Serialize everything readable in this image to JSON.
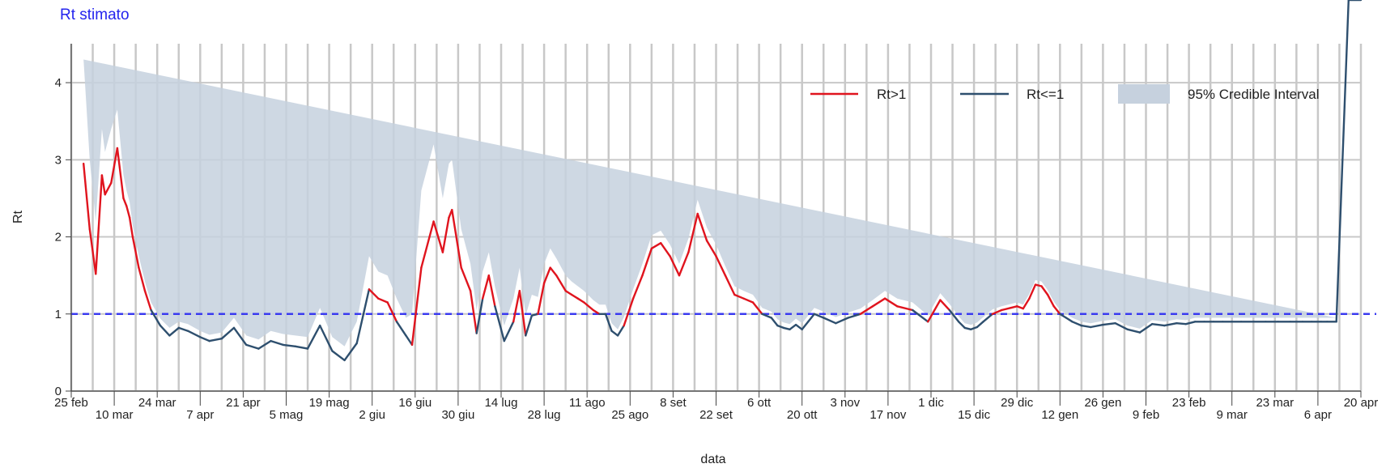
{
  "chart_data": {
    "type": "line",
    "title": "Rt stimato",
    "xlabel": "data",
    "ylabel": "Rt",
    "ylim": [
      0,
      4.4
    ],
    "yticks": [
      0,
      1,
      2,
      3,
      4
    ],
    "x_start": "2020-02-25",
    "x_end": "2021-04-20",
    "xtick_labels": [
      "25 feb",
      "10 mar",
      "24 mar",
      "7 apr",
      "21 apr",
      "5 mag",
      "19 mag",
      "2 giu",
      "16 giu",
      "30 giu",
      "14 lug",
      "28 lug",
      "11 ago",
      "25 ago",
      "8 set",
      "22 set",
      "6 ott",
      "20 ott",
      "3 nov",
      "17 nov",
      "1 dic",
      "15 dic",
      "29 dic",
      "12 gen",
      "26 gen",
      "9 feb",
      "23 feb",
      "9 mar",
      "23 mar",
      "6 apr",
      "20 apr"
    ],
    "reference_line": 1,
    "grid": true,
    "legend_position": "top-right",
    "legend": [
      "Rt>1",
      "Rt<=1",
      "95% Credible Interval"
    ],
    "colors": {
      "above": "#e0141e",
      "below": "#2e4f6e",
      "ci": "#c6d1de",
      "ref": "#3a3af0",
      "title": "#2424ee"
    },
    "series": [
      {
        "dates": [
          "2020-02-29",
          "2020-03-02",
          "2020-03-04",
          "2020-03-06",
          "2020-03-07",
          "2020-03-09",
          "2020-03-11",
          "2020-03-13",
          "2020-03-14",
          "2020-03-15",
          "2020-03-16",
          "2020-03-18",
          "2020-03-20",
          "2020-03-22",
          "2020-03-25",
          "2020-03-28",
          "2020-03-31",
          "2020-04-03",
          "2020-04-07",
          "2020-04-10",
          "2020-04-14",
          "2020-04-18",
          "2020-04-22",
          "2020-04-26",
          "2020-04-30",
          "2020-05-04",
          "2020-05-08",
          "2020-05-12",
          "2020-05-16",
          "2020-05-20",
          "2020-05-24",
          "2020-05-28",
          "2020-06-01",
          "2020-06-04",
          "2020-06-07",
          "2020-06-10",
          "2020-06-13",
          "2020-06-15",
          "2020-06-18",
          "2020-06-22",
          "2020-06-25",
          "2020-06-27",
          "2020-06-28",
          "2020-07-01",
          "2020-07-04",
          "2020-07-06",
          "2020-07-08",
          "2020-07-10",
          "2020-07-12",
          "2020-07-15",
          "2020-07-18",
          "2020-07-20",
          "2020-07-22",
          "2020-07-24",
          "2020-07-26",
          "2020-07-28",
          "2020-07-30",
          "2020-08-01",
          "2020-08-04",
          "2020-08-06",
          "2020-08-08",
          "2020-08-10",
          "2020-08-13",
          "2020-08-15",
          "2020-08-17",
          "2020-08-19",
          "2020-08-21",
          "2020-08-23",
          "2020-08-26",
          "2020-08-29",
          "2020-09-01",
          "2020-09-04",
          "2020-09-07",
          "2020-09-10",
          "2020-09-13",
          "2020-09-16",
          "2020-09-19",
          "2020-09-22",
          "2020-09-25",
          "2020-09-28",
          "2020-10-01",
          "2020-10-04",
          "2020-10-07",
          "2020-10-10",
          "2020-10-12",
          "2020-10-14",
          "2020-10-16",
          "2020-10-18",
          "2020-10-20",
          "2020-10-22",
          "2020-10-24",
          "2020-10-27",
          "2020-10-31",
          "2020-11-04",
          "2020-11-08",
          "2020-11-12",
          "2020-11-16",
          "2020-11-20",
          "2020-11-25",
          "2020-11-30",
          "2020-12-04",
          "2020-12-07",
          "2020-12-10",
          "2020-12-12",
          "2020-12-14",
          "2020-12-16",
          "2020-12-18",
          "2020-12-21",
          "2020-12-24",
          "2020-12-27",
          "2020-12-29",
          "2020-12-31",
          "2021-01-02",
          "2021-01-04",
          "2021-01-06",
          "2021-01-08",
          "2021-01-10",
          "2021-01-12",
          "2021-01-14",
          "2021-01-16",
          "2021-01-19",
          "2021-01-22",
          "2021-01-26",
          "2021-01-30",
          "2021-02-03",
          "2021-02-07",
          "2021-02-11",
          "2021-02-15",
          "2021-02-19",
          "2021-02-22",
          "2021-02-25",
          "2021-02-28",
          "2021-03-03",
          "2021-03-06",
          "2021-03-09",
          "2021-03-12",
          "2021-03-16",
          "2021-03-20",
          "2021-03-24",
          "2021-03-28",
          "2021-04-01",
          "2021-04-04",
          "2021-04-07",
          "2021-04-09",
          "2021-04-12",
          "2021-04-16",
          "2021-04-20"
        ],
        "rt": [
          2.95,
          2.1,
          1.52,
          2.8,
          2.55,
          2.7,
          3.15,
          2.5,
          2.4,
          2.25,
          2.0,
          1.6,
          1.3,
          1.05,
          0.85,
          0.72,
          0.82,
          0.78,
          0.7,
          0.65,
          0.68,
          0.82,
          0.6,
          0.55,
          0.65,
          0.6,
          0.58,
          0.55,
          0.85,
          0.52,
          0.4,
          0.62,
          1.32,
          1.2,
          1.15,
          0.9,
          0.72,
          0.6,
          1.6,
          2.2,
          1.8,
          2.25,
          2.35,
          1.6,
          1.3,
          0.75,
          1.2,
          1.5,
          1.1,
          0.65,
          0.9,
          1.3,
          0.72,
          0.98,
          1.0,
          1.4,
          1.6,
          1.5,
          1.3,
          1.25,
          1.2,
          1.15,
          1.05,
          1.0,
          1.0,
          0.78,
          0.72,
          0.85,
          1.2,
          1.5,
          1.85,
          1.92,
          1.75,
          1.5,
          1.8,
          2.3,
          1.95,
          1.75,
          1.5,
          1.25,
          1.2,
          1.15,
          1.0,
          0.95,
          0.85,
          0.82,
          0.8,
          0.86,
          0.8,
          0.9,
          1.0,
          0.95,
          0.88,
          0.95,
          1.0,
          1.1,
          1.2,
          1.1,
          1.05,
          0.9,
          1.18,
          1.05,
          0.9,
          0.82,
          0.8,
          0.83,
          0.9,
          1.0,
          1.05,
          1.08,
          1.1,
          1.07,
          1.2,
          1.38,
          1.36,
          1.25,
          1.1,
          1.0,
          0.95,
          0.9,
          0.85,
          0.83,
          0.86,
          0.88,
          0.8,
          0.76,
          0.87,
          0.85,
          0.88,
          0.87,
          0.9,
          0.9,
          0.9,
          0.9,
          0.9,
          0.9,
          0.9,
          0.9,
          0.9,
          0.9,
          0.9,
          0.9,
          0.9,
          0.9,
          0.9
        ],
        "ci_low": [
          2.2,
          1.6,
          1.2,
          2.2,
          2.1,
          2.3,
          2.7,
          2.3,
          2.2,
          2.1,
          1.9,
          1.5,
          1.2,
          0.98,
          0.78,
          0.64,
          0.73,
          0.7,
          0.62,
          0.58,
          0.6,
          0.7,
          0.48,
          0.44,
          0.52,
          0.47,
          0.44,
          0.4,
          0.6,
          0.36,
          0.25,
          0.35,
          0.95,
          0.9,
          0.82,
          0.6,
          0.5,
          0.2,
          1.0,
          1.6,
          1.35,
          1.7,
          1.8,
          1.2,
          1.0,
          0.5,
          0.9,
          1.2,
          0.85,
          0.45,
          0.6,
          1.0,
          0.48,
          0.7,
          0.8,
          1.15,
          1.35,
          1.3,
          1.12,
          1.1,
          1.05,
          1.0,
          0.92,
          0.88,
          0.88,
          0.68,
          0.64,
          0.76,
          1.08,
          1.35,
          1.68,
          1.78,
          1.6,
          1.35,
          1.62,
          2.1,
          1.78,
          1.6,
          1.38,
          1.15,
          1.1,
          1.05,
          0.92,
          0.87,
          0.78,
          0.76,
          0.74,
          0.78,
          0.72,
          0.82,
          0.92,
          0.87,
          0.8,
          0.88,
          0.93,
          1.02,
          1.1,
          1.0,
          0.95,
          0.82,
          1.1,
          0.97,
          0.84,
          0.76,
          0.74,
          0.77,
          0.84,
          0.94,
          1.0,
          1.03,
          1.05,
          1.02,
          1.14,
          1.32,
          1.3,
          1.19,
          1.04,
          0.95,
          0.9,
          0.85,
          0.8,
          0.78,
          0.82,
          0.83,
          0.75,
          0.71,
          0.82,
          0.8,
          0.83,
          0.82,
          0.85,
          0.85,
          0.85,
          0.85,
          0.85,
          0.85,
          0.85,
          0.85,
          0.85,
          0.85,
          0.85,
          0.85,
          0.85,
          0.85,
          0.85
        ],
        "ci_high": [
          4.3,
          3.0,
          2.2,
          3.4,
          3.1,
          3.4,
          3.65,
          2.8,
          2.6,
          2.45,
          2.15,
          1.75,
          1.42,
          1.15,
          0.94,
          0.82,
          0.9,
          0.87,
          0.78,
          0.73,
          0.76,
          0.95,
          0.72,
          0.67,
          0.78,
          0.74,
          0.72,
          0.7,
          1.08,
          0.7,
          0.58,
          0.9,
          1.75,
          1.55,
          1.5,
          1.2,
          0.95,
          1.0,
          2.6,
          3.2,
          2.5,
          2.95,
          3.0,
          2.1,
          1.65,
          1.05,
          1.55,
          1.8,
          1.35,
          0.85,
          1.2,
          1.6,
          0.98,
          1.25,
          1.22,
          1.65,
          1.85,
          1.72,
          1.5,
          1.42,
          1.36,
          1.3,
          1.18,
          1.12,
          1.12,
          0.88,
          0.8,
          0.96,
          1.32,
          1.65,
          2.02,
          2.08,
          1.9,
          1.65,
          1.98,
          2.48,
          2.12,
          1.9,
          1.62,
          1.36,
          1.3,
          1.25,
          1.08,
          1.03,
          0.93,
          0.89,
          0.87,
          0.94,
          0.88,
          0.98,
          1.08,
          1.03,
          0.96,
          1.02,
          1.07,
          1.18,
          1.3,
          1.2,
          1.15,
          0.98,
          1.27,
          1.13,
          0.97,
          0.88,
          0.86,
          0.89,
          0.96,
          1.06,
          1.1,
          1.13,
          1.15,
          1.12,
          1.26,
          1.44,
          1.42,
          1.31,
          1.16,
          1.05,
          1.0,
          0.95,
          0.9,
          0.88,
          0.91,
          0.93,
          0.85,
          0.81,
          0.92,
          0.9,
          0.93,
          0.92,
          0.95,
          0.95,
          0.95,
          0.95,
          0.95,
          0.95,
          0.95,
          0.95,
          0.95,
          0.95,
          0.95,
          0.95,
          0.95,
          0.95,
          0.95
        ]
      }
    ]
  }
}
